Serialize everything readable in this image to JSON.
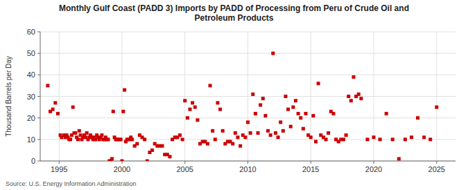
{
  "chart_data": {
    "type": "scatter",
    "title": "Monthly Gulf Coast (PADD 3) Imports by PADD of Processing from Peru of Crude Oil and\nPetroleum Products",
    "y_label": "Thousand Barrels per Day",
    "annotations": [
      "Source: U.S. Energy Information Administration"
    ],
    "color": "#cc0000",
    "marker": "square",
    "grid": true,
    "xlim": [
      1993.5,
      2026.5
    ],
    "ylim": [
      0,
      60
    ],
    "xticks": [
      1995,
      2000,
      2005,
      2010,
      2015,
      2020,
      2025
    ],
    "yticks": [
      0,
      10,
      20,
      30,
      40,
      50,
      60
    ],
    "x": [
      1994.1,
      1994.3,
      1994.5,
      1994.7,
      1994.9,
      1995.1,
      1995.2,
      1995.4,
      1995.5,
      1995.6,
      1995.7,
      1995.8,
      1995.9,
      1996.0,
      1996.1,
      1996.2,
      1996.3,
      1996.4,
      1996.5,
      1996.6,
      1996.7,
      1996.8,
      1996.9,
      1997.0,
      1997.1,
      1997.2,
      1997.3,
      1997.4,
      1997.5,
      1997.6,
      1997.7,
      1997.8,
      1997.9,
      1998.0,
      1998.1,
      1998.2,
      1998.3,
      1998.4,
      1998.5,
      1998.6,
      1998.7,
      1998.8,
      1998.9,
      1999.0,
      1999.1,
      1999.2,
      1999.3,
      1999.4,
      1999.5,
      1999.6,
      1999.7,
      1999.8,
      1999.9,
      2000.0,
      2000.1,
      2000.2,
      2000.3,
      2000.4,
      2000.5,
      2000.6,
      2000.7,
      2000.8,
      2001.0,
      2001.2,
      2001.4,
      2001.6,
      2001.8,
      2002.0,
      2002.2,
      2002.4,
      2002.6,
      2002.8,
      2003.0,
      2003.2,
      2003.4,
      2003.6,
      2003.8,
      2004.0,
      2004.2,
      2004.4,
      2004.6,
      2004.8,
      2005.0,
      2005.2,
      2005.4,
      2005.6,
      2005.8,
      2006.0,
      2006.2,
      2006.4,
      2006.6,
      2006.8,
      2007.0,
      2007.2,
      2007.4,
      2007.6,
      2007.8,
      2008.0,
      2008.2,
      2008.4,
      2008.6,
      2008.8,
      2009.0,
      2009.2,
      2009.4,
      2009.6,
      2009.8,
      2010.0,
      2010.2,
      2010.4,
      2010.6,
      2010.8,
      2011.0,
      2011.2,
      2011.4,
      2011.6,
      2011.8,
      2012.0,
      2012.2,
      2012.4,
      2012.6,
      2012.8,
      2013.0,
      2013.2,
      2013.4,
      2013.6,
      2013.8,
      2014.0,
      2014.2,
      2014.4,
      2014.6,
      2014.8,
      2015.0,
      2015.2,
      2015.4,
      2015.6,
      2015.8,
      2016.0,
      2016.2,
      2016.4,
      2016.6,
      2016.8,
      2017.0,
      2017.2,
      2017.4,
      2017.6,
      2017.8,
      2018.0,
      2018.2,
      2018.4,
      2018.6,
      2018.8,
      2019.0,
      2019.5,
      2020.0,
      2020.5,
      2021.0,
      2021.5,
      2022.0,
      2022.5,
      2023.0,
      2023.5,
      2024.0,
      2024.5,
      2025.0
    ],
    "values": [
      35,
      23,
      24,
      27,
      22,
      12,
      11,
      12,
      11,
      12,
      11,
      10,
      10,
      12,
      25,
      13,
      13,
      11,
      10,
      14,
      12,
      10,
      11,
      12,
      11,
      13,
      10,
      11,
      12,
      11,
      10,
      11,
      10,
      12,
      11,
      10,
      11,
      12,
      10,
      10,
      11,
      10,
      10,
      0,
      0,
      1,
      23,
      11,
      10,
      10,
      10,
      10,
      10,
      0,
      23,
      33,
      9,
      10,
      10,
      10,
      11,
      10,
      7,
      8,
      12,
      11,
      10,
      0,
      4,
      5,
      8,
      7,
      7,
      7,
      3,
      3,
      2,
      10,
      11,
      11,
      12,
      10,
      28,
      20,
      24,
      27,
      25,
      19,
      8,
      9,
      9,
      8,
      35,
      14,
      10,
      27,
      24,
      14,
      8,
      9,
      9,
      8,
      13,
      11,
      7,
      12,
      11,
      18,
      13,
      31,
      22,
      13,
      26,
      29,
      21,
      14,
      12,
      50,
      13,
      11,
      18,
      14,
      30,
      24,
      16,
      25,
      28,
      22,
      20,
      15,
      22,
      12,
      11,
      21,
      9,
      36,
      12,
      11,
      10,
      13,
      23,
      22,
      10,
      9,
      10,
      10,
      12,
      30,
      28,
      39,
      30,
      31,
      29,
      10,
      11,
      10,
      22,
      10,
      1,
      10,
      11,
      20,
      11,
      10,
      25
    ]
  }
}
